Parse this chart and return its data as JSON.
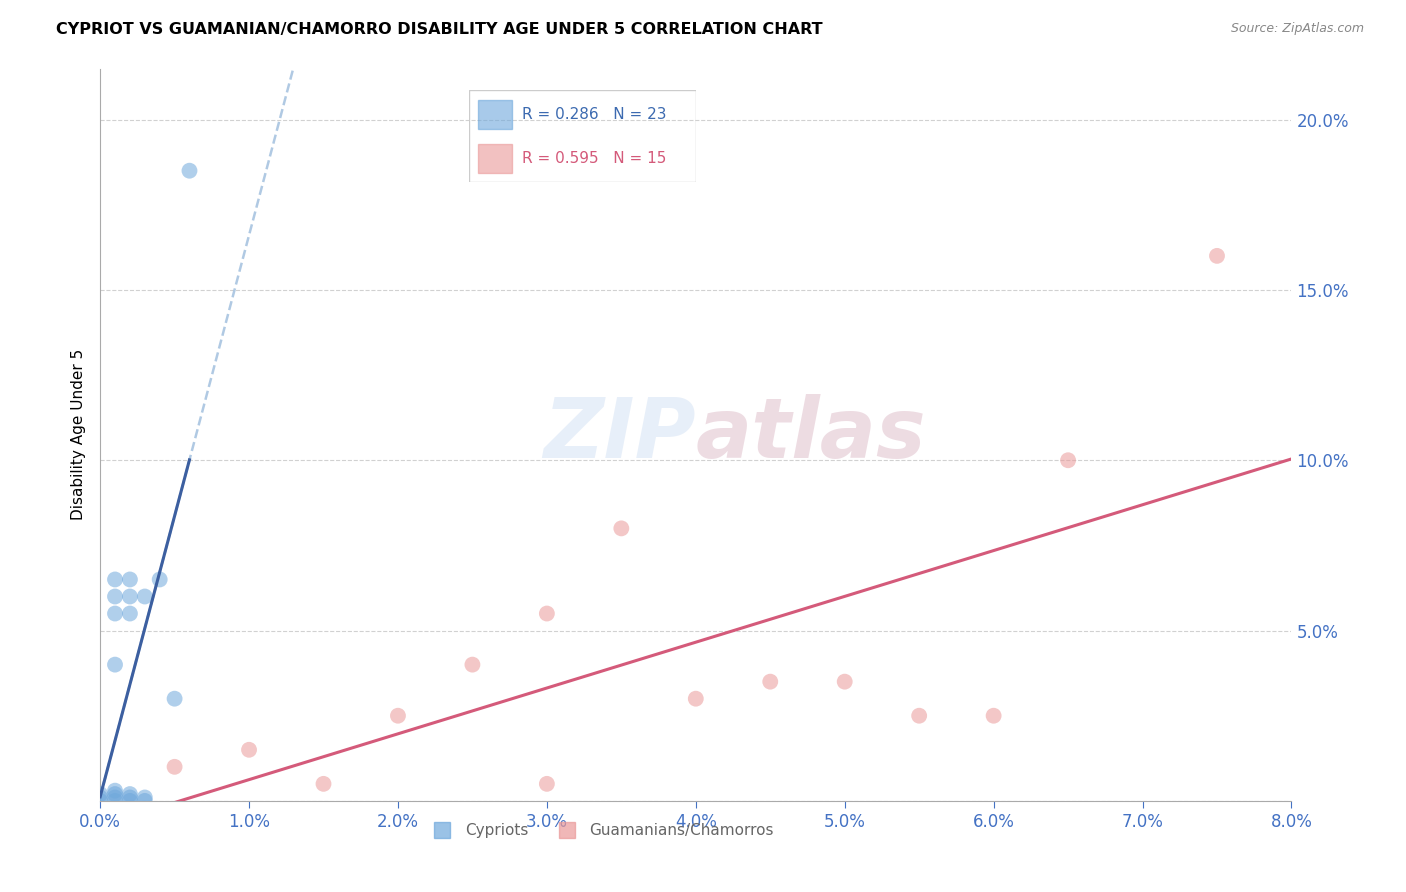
{
  "title": "CYPRIOT VS GUAMANIAN/CHAMORRO DISABILITY AGE UNDER 5 CORRELATION CHART",
  "source": "Source: ZipAtlas.com",
  "ylabel": "Disability Age Under 5",
  "R_cypriot": 0.286,
  "N_cypriot": 23,
  "R_guamanian": 0.595,
  "N_guamanian": 15,
  "cypriot_color": "#6fa8dc",
  "guamanian_color": "#ea9999",
  "trend_cypriot_solid_color": "#3c5fa0",
  "trend_cypriot_dash_color": "#a8c4e0",
  "trend_guamanian_color": "#d45a7a",
  "xlim": [
    0.0,
    0.08
  ],
  "ylim": [
    0.0,
    0.215
  ],
  "cypriot_x": [
    0.0,
    0.0,
    0.0,
    0.001,
    0.001,
    0.001,
    0.001,
    0.001,
    0.001,
    0.001,
    0.001,
    0.002,
    0.002,
    0.002,
    0.002,
    0.002,
    0.002,
    0.003,
    0.003,
    0.003,
    0.004,
    0.005,
    0.006
  ],
  "cypriot_y": [
    0.0,
    0.001,
    0.002,
    0.0,
    0.001,
    0.002,
    0.003,
    0.04,
    0.055,
    0.06,
    0.065,
    0.0,
    0.001,
    0.002,
    0.055,
    0.06,
    0.065,
    0.0,
    0.001,
    0.06,
    0.065,
    0.03,
    0.185
  ],
  "guamanian_x": [
    0.005,
    0.01,
    0.015,
    0.02,
    0.025,
    0.03,
    0.03,
    0.035,
    0.04,
    0.045,
    0.05,
    0.055,
    0.06,
    0.065,
    0.075
  ],
  "guamanian_y": [
    0.01,
    0.015,
    0.005,
    0.025,
    0.04,
    0.055,
    0.005,
    0.08,
    0.03,
    0.035,
    0.035,
    0.025,
    0.025,
    0.1,
    0.16
  ]
}
